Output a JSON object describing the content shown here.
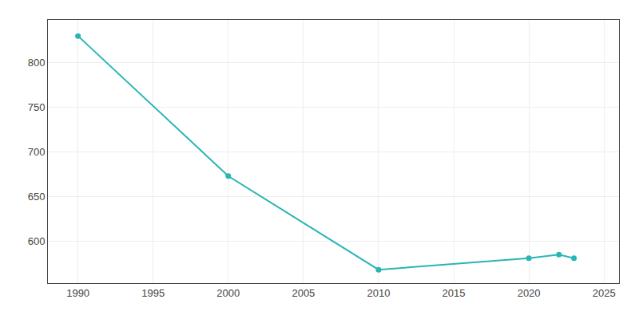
{
  "chart_data": {
    "type": "line",
    "x": [
      1990,
      2000,
      2010,
      2020,
      2022,
      2023
    ],
    "values": [
      830,
      673,
      568,
      581,
      585,
      581
    ],
    "color": "#2ab5b5",
    "marker": "circle",
    "line_style": "solid",
    "xlim": [
      1988,
      2026
    ],
    "ylim": [
      553,
      848
    ],
    "xticks": [
      1990,
      1995,
      2000,
      2005,
      2010,
      2015,
      2020,
      2025
    ],
    "yticks": [
      600,
      650,
      700,
      750,
      800
    ],
    "grid": true
  }
}
